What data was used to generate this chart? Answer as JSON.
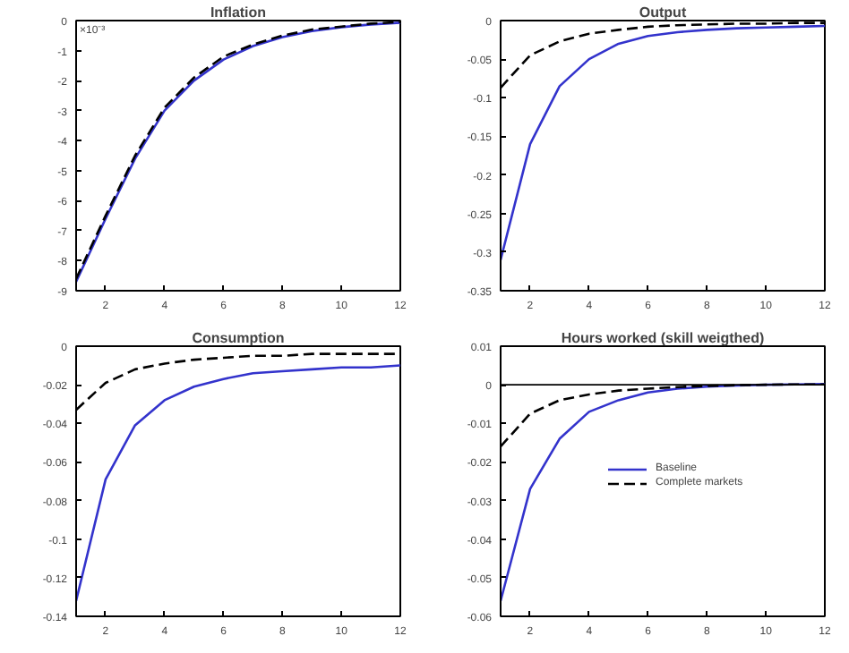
{
  "chart_data": [
    {
      "type": "line",
      "title": "Inflation",
      "x": [
        1,
        2,
        3,
        4,
        5,
        6,
        7,
        8,
        9,
        10,
        11,
        12
      ],
      "xlim": [
        1,
        12
      ],
      "xticks": [
        2,
        4,
        6,
        8,
        10,
        12
      ],
      "ylim": [
        -9,
        0
      ],
      "yticks": [
        -9,
        -8,
        -7,
        -6,
        -5,
        -4,
        -3,
        -2,
        -1,
        0
      ],
      "annotations": [
        "×10⁻³"
      ],
      "grid": false,
      "legend": false,
      "series": [
        {
          "color": "#3333cc",
          "line_style": "solid",
          "values": [
            -8.7,
            -6.6,
            -4.6,
            -3.0,
            -2.0,
            -1.3,
            -0.85,
            -0.55,
            -0.35,
            -0.22,
            -0.13,
            -0.07
          ]
        },
        {
          "color": "#000000",
          "line_style": "dashed",
          "values": [
            -8.6,
            -6.5,
            -4.5,
            -2.9,
            -1.9,
            -1.2,
            -0.8,
            -0.5,
            -0.3,
            -0.2,
            -0.1,
            -0.05
          ]
        }
      ]
    },
    {
      "type": "line",
      "title": "Output",
      "x": [
        1,
        2,
        3,
        4,
        5,
        6,
        7,
        8,
        9,
        10,
        11,
        12
      ],
      "xlim": [
        1,
        12
      ],
      "xticks": [
        2,
        4,
        6,
        8,
        10,
        12
      ],
      "ylim": [
        -0.35,
        0
      ],
      "yticks": [
        -0.35,
        -0.3,
        -0.25,
        -0.2,
        -0.15,
        -0.1,
        -0.05,
        0
      ],
      "grid": false,
      "legend": false,
      "series": [
        {
          "color": "#3333cc",
          "line_style": "solid",
          "values": [
            -0.31,
            -0.16,
            -0.085,
            -0.05,
            -0.03,
            -0.02,
            -0.015,
            -0.012,
            -0.01,
            -0.009,
            -0.008,
            -0.007
          ]
        },
        {
          "color": "#000000",
          "line_style": "dashed",
          "values": [
            -0.087,
            -0.045,
            -0.027,
            -0.017,
            -0.012,
            -0.008,
            -0.006,
            -0.005,
            -0.004,
            -0.004,
            -0.003,
            -0.003
          ]
        }
      ]
    },
    {
      "type": "line",
      "title": "Consumption",
      "x": [
        1,
        2,
        3,
        4,
        5,
        6,
        7,
        8,
        9,
        10,
        11,
        12
      ],
      "xlim": [
        1,
        12
      ],
      "xticks": [
        2,
        4,
        6,
        8,
        10,
        12
      ],
      "ylim": [
        -0.14,
        0
      ],
      "yticks": [
        -0.14,
        -0.12,
        -0.1,
        -0.08,
        -0.06,
        -0.04,
        -0.02,
        0
      ],
      "grid": false,
      "legend": false,
      "series": [
        {
          "color": "#3333cc",
          "line_style": "solid",
          "values": [
            -0.132,
            -0.069,
            -0.041,
            -0.028,
            -0.021,
            -0.017,
            -0.014,
            -0.013,
            -0.012,
            -0.011,
            -0.011,
            -0.01
          ]
        },
        {
          "color": "#000000",
          "line_style": "dashed",
          "values": [
            -0.033,
            -0.019,
            -0.012,
            -0.009,
            -0.007,
            -0.006,
            -0.005,
            -0.005,
            -0.004,
            -0.004,
            -0.004,
            -0.004
          ]
        }
      ]
    },
    {
      "type": "line",
      "title": "Hours worked (skill weigthed)",
      "x": [
        1,
        2,
        3,
        4,
        5,
        6,
        7,
        8,
        9,
        10,
        11,
        12
      ],
      "xlim": [
        1,
        12
      ],
      "xticks": [
        2,
        4,
        6,
        8,
        10,
        12
      ],
      "ylim": [
        -0.06,
        0.01
      ],
      "yticks": [
        -0.06,
        -0.05,
        -0.04,
        -0.03,
        -0.02,
        -0.01,
        0,
        0.01
      ],
      "grid": false,
      "legend": "top right",
      "ref_lines": [
        {
          "axis": "y",
          "value": 0,
          "color": "#000000"
        }
      ],
      "series": [
        {
          "name": "Baseline",
          "color": "#3333cc",
          "line_style": "solid",
          "values": [
            -0.056,
            -0.027,
            -0.014,
            -0.007,
            -0.004,
            -0.002,
            -0.001,
            -0.0005,
            -0.0002,
            0,
            0.0001,
            0.0002
          ]
        },
        {
          "name": "Complete markets",
          "color": "#000000",
          "line_style": "dashed",
          "values": [
            -0.016,
            -0.0075,
            -0.004,
            -0.0025,
            -0.0015,
            -0.001,
            -0.0006,
            -0.0003,
            -0.0001,
            0,
            0.0001,
            0.0001
          ]
        }
      ]
    }
  ]
}
